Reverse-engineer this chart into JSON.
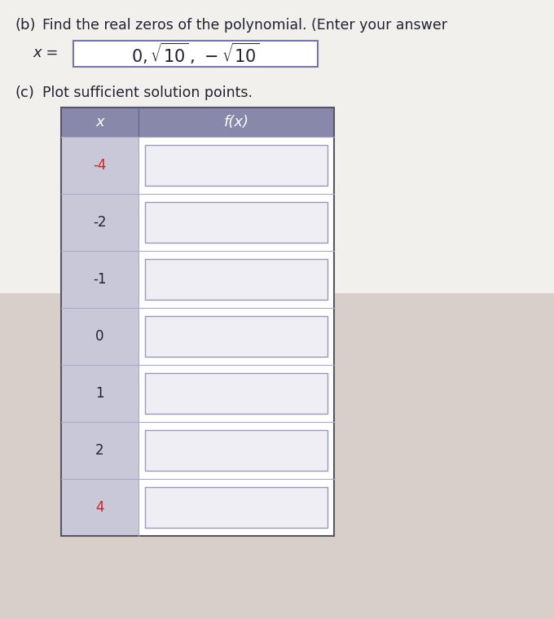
{
  "bg_color": "#d8d0c8",
  "top_area_bg": "#f0eeea",
  "title_b": "(b)  Find the real zeros of the polynomial. (Enter your answer",
  "answer_label": "x = ",
  "section_c": "(c)  Plot sufficient solution points.",
  "table_header_bg": "#8888aa",
  "table_x_col_bg": "#c8c8d8",
  "table_row_bg": "#ffffff",
  "table_input_bg": "#eeeef4",
  "table_input_border": "#9999bb",
  "table_outer_border": "#555566",
  "table_inner_border": "#aaaacc",
  "x_values": [
    "-4",
    "-2",
    "-1",
    "0",
    "1",
    "2",
    "4"
  ],
  "x_label": "x",
  "fx_label": "f(x)",
  "text_color_main": "#222233",
  "text_color_red": "#cc2222",
  "red_x_values": [
    "-4",
    "4"
  ]
}
